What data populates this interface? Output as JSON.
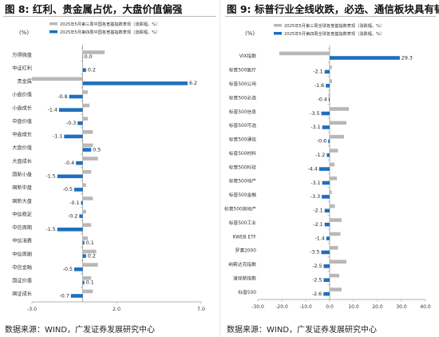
{
  "chart_data": [
    {
      "type": "bar",
      "figure_label": "图 8:",
      "title": "红利、贵金属占优，大盘价值偏强",
      "unit_label": "(%)",
      "categories": [
        "万得微盘",
        "中证红利",
        "贵金属",
        "小盘价值",
        "小盘成长",
        "中盘价值",
        "中盘成长",
        "大盘价值",
        "大盘成长",
        "国新小盘",
        "国新中盘",
        "国新大盘",
        "中信稳定",
        "中信周期",
        "中信消费",
        "中信周期",
        "中信金融",
        "国证价值",
        "国证成长"
      ],
      "series": [
        {
          "name": "2025年5月第三周中国各宽基指数表现（涨跌幅，%）",
          "color": "#b8b8b8",
          "values": [
            1.3,
            0.0,
            -3.0,
            0.3,
            0.4,
            0.3,
            0.6,
            0.6,
            0.9,
            0.5,
            0.2,
            0.6,
            0.2,
            0.5,
            0.3,
            0.8,
            0.9,
            0.5,
            0.6
          ],
          "show_labels": false
        },
        {
          "name": "2025年5月第四周中国各宽基指数表现（涨跌幅，%）",
          "color": "#1f6fbf",
          "values": [
            0.0,
            0.2,
            6.2,
            -0.8,
            -1.4,
            -0.3,
            -1.1,
            0.5,
            -0.4,
            -1.5,
            -0.5,
            -0.1,
            -0.2,
            -1.5,
            0.1,
            0.2,
            -0.5,
            0.1,
            -0.7
          ],
          "data_labels": [
            "0.0",
            "0.2",
            "6.2",
            "-0.8",
            "-1.4",
            "-0.3",
            "-1.1",
            "0.5",
            "-0.4",
            "-1.5",
            "-0.5",
            "-0.1",
            "-0.2",
            "-1.5",
            "0.1",
            "0.2",
            "-0.5",
            "0.1",
            "-0.7"
          ]
        }
      ],
      "xlim": [
        -3.0,
        7.0
      ],
      "xticks": [
        "-3.0",
        "2.0",
        "7.0"
      ],
      "xtick_values": [
        -3.0,
        2.0,
        7.0
      ],
      "legend_position": "top-left",
      "orientation": "horizontal",
      "grid": false
    },
    {
      "type": "bar",
      "figure_label": "图 9:",
      "title": "标普行业全线收跌，必选、通信板块具有韧性",
      "unit_label": "(%)",
      "categories": [
        "VIX指数",
        "标普500医疗",
        "标普500公用",
        "标普500必选",
        "标普500信息",
        "标普500可选",
        "标普500通信",
        "标普500材料",
        "标普500科技",
        "标普500地产",
        "标普500金融",
        "标普500房地产",
        "标普500工业",
        "KWEB ETF",
        "罗素2000",
        "纳斯达克指数",
        "道琼斯指数",
        "标普500"
      ],
      "series": [
        {
          "name": "2025年5月第三周全球各宽基指数表现（涨跌幅，%）",
          "color": "#b8b8b8",
          "values": [
            -21.0,
            0.9,
            1.0,
            -0.5,
            8.0,
            7.0,
            6.0,
            3.5,
            2.0,
            3.0,
            0.9,
            2.2,
            5.0,
            4.5,
            3.5,
            7.0,
            4.0,
            5.0
          ],
          "show_labels": false
        },
        {
          "name": "2025年5月第四周全球各宽基指数表现（涨跌幅，%）",
          "color": "#1f6fbf",
          "values": [
            29.3,
            -2.1,
            -1.6,
            -0.4,
            -3.5,
            -3.1,
            -0.6,
            -1.2,
            -4.4,
            -3.1,
            -3.3,
            -2.1,
            -2.1,
            -1.4,
            -3.5,
            -2.5,
            -2.5,
            -2.6
          ],
          "data_labels": [
            "29.3",
            "-2.1",
            "-1.6",
            "-0.4",
            "-3.5",
            "-3.1",
            "-0.6",
            "-1.2",
            "-4.4",
            "-3.1",
            "-3.3",
            "-2.1",
            "-2.1",
            "-1.4",
            "-3.5",
            "-2.5",
            "-2.5",
            "-2.6"
          ]
        }
      ],
      "xlim": [
        -30.0,
        40.0
      ],
      "xticks": [
        "-30.0",
        "-20.0",
        "-10.0",
        "0.0",
        "10.0",
        "20.0",
        "30.0",
        "40.0"
      ],
      "xtick_values": [
        -30,
        -20,
        -10,
        0,
        10,
        20,
        30,
        40
      ],
      "legend_position": "top-left",
      "orientation": "horizontal",
      "grid": false
    }
  ],
  "source_text": "数据来源：WIND，广发证券发展研究中心"
}
